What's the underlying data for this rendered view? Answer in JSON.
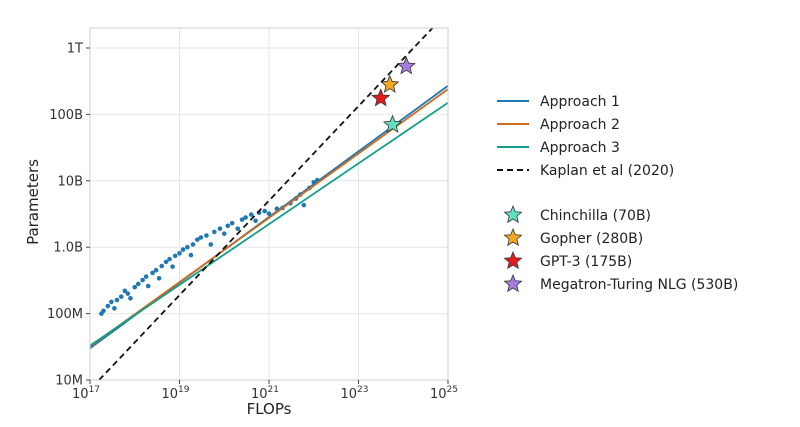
{
  "chart_data": {
    "type": "line",
    "xlabel": "FLOPs",
    "ylabel": "Parameters",
    "xscale": "log",
    "yscale": "log",
    "xlim": [
      1e+17,
      1e+25
    ],
    "ylim": [
      10000000.0,
      2000000000000.0
    ],
    "grid": true,
    "legend_placement": "right",
    "x_ticks": [
      {
        "value": 1e+17,
        "base": "10",
        "exp": "17"
      },
      {
        "value": 1e+19,
        "base": "10",
        "exp": "19"
      },
      {
        "value": 1e+21,
        "base": "10",
        "exp": "21"
      },
      {
        "value": 1e+23,
        "base": "10",
        "exp": "23"
      },
      {
        "value": 1e+25,
        "base": "10",
        "exp": "25"
      }
    ],
    "y_ticks": [
      {
        "value": 10000000.0,
        "label": "10M"
      },
      {
        "value": 100000000.0,
        "label": "100M"
      },
      {
        "value": 1000000000.0,
        "label": "1.0B"
      },
      {
        "value": 10000000000.0,
        "label": "10B"
      },
      {
        "value": 100000000000.0,
        "label": "100B"
      },
      {
        "value": 1000000000000.0,
        "label": "1T"
      }
    ],
    "series": [
      {
        "name": "Approach 1",
        "style": "solid",
        "color": "#1f77b4",
        "x": [
          1e+17,
          1e+25
        ],
        "y": [
          30000000.0,
          270000000000.0
        ]
      },
      {
        "name": "Approach 2",
        "style": "solid",
        "color": "#d2691e",
        "x": [
          1e+17,
          1e+25
        ],
        "y": [
          32000000.0,
          240000000000.0
        ]
      },
      {
        "name": "Approach 3",
        "style": "solid",
        "color": "#109e8a",
        "x": [
          1e+17,
          1e+25
        ],
        "y": [
          33000000.0,
          150000000000.0
        ]
      },
      {
        "name": "Kaplan et al (2020)",
        "style": "dashed",
        "color": "#111111",
        "x": [
          1.6e+17,
          4.5e+24
        ],
        "y": [
          10000000.0,
          2000000000000.0
        ]
      }
    ],
    "scatter": {
      "color": "#1f77b4",
      "points": [
        [
          1.8e+17,
          100000000.0
        ],
        [
          2e+17,
          110000000.0
        ],
        [
          2.5e+17,
          130000000.0
        ],
        [
          3e+17,
          150000000.0
        ],
        [
          3.5e+17,
          120000000.0
        ],
        [
          4e+17,
          160000000.0
        ],
        [
          5e+17,
          180000000.0
        ],
        [
          6e+17,
          220000000.0
        ],
        [
          7e+17,
          200000000.0
        ],
        [
          8e+17,
          170000000.0
        ],
        [
          1e+18,
          250000000.0
        ],
        [
          1.2e+18,
          280000000.0
        ],
        [
          1.5e+18,
          320000000.0
        ],
        [
          1.8e+18,
          360000000.0
        ],
        [
          2e+18,
          260000000.0
        ],
        [
          2.5e+18,
          410000000.0
        ],
        [
          3e+18,
          450000000.0
        ],
        [
          3.5e+18,
          340000000.0
        ],
        [
          4e+18,
          520000000.0
        ],
        [
          5e+18,
          600000000.0
        ],
        [
          6e+18,
          660000000.0
        ],
        [
          7e+18,
          510000000.0
        ],
        [
          8e+18,
          740000000.0
        ],
        [
          1e+19,
          810000000.0
        ],
        [
          1.2e+19,
          920000000.0
        ],
        [
          1.5e+19,
          1000000000.0
        ],
        [
          1.8e+19,
          760000000.0
        ],
        [
          2e+19,
          1100000000.0
        ],
        [
          2.5e+19,
          1300000000.0
        ],
        [
          3e+19,
          1400000000.0
        ],
        [
          4e+19,
          1500000000.0
        ],
        [
          5e+19,
          1100000000.0
        ],
        [
          6e+19,
          1700000000.0
        ],
        [
          8e+19,
          1900000000.0
        ],
        [
          1e+20,
          1600000000.0
        ],
        [
          1.2e+20,
          2100000000.0
        ],
        [
          1.5e+20,
          2300000000.0
        ],
        [
          2e+20,
          1900000000.0
        ],
        [
          2.5e+20,
          2600000000.0
        ],
        [
          3e+20,
          2800000000.0
        ],
        [
          4e+20,
          3100000000.0
        ],
        [
          5e+20,
          2500000000.0
        ],
        [
          6e+20,
          3300000000.0
        ],
        [
          8e+20,
          3500000000.0
        ],
        [
          1e+21,
          3200000000.0
        ],
        [
          1.5e+21,
          3800000000.0
        ],
        [
          2e+21,
          3900000000.0
        ],
        [
          3e+21,
          4600000000.0
        ],
        [
          4e+21,
          5400000000.0
        ],
        [
          5e+21,
          6200000000.0
        ],
        [
          6e+21,
          4300000000.0
        ],
        [
          8e+21,
          7800000000.0
        ],
        [
          1e+22,
          9500000000.0
        ],
        [
          1.2e+22,
          10200000000.0
        ]
      ]
    },
    "stars": [
      {
        "name": "Chinchilla (70B)",
        "x": 5.76e+23,
        "y": 70000000000.0,
        "color": "#5fe0c0"
      },
      {
        "name": "Gopher (280B)",
        "x": 5e+23,
        "y": 280000000000.0,
        "color": "#f5a623"
      },
      {
        "name": "GPT-3 (175B)",
        "x": 3.14e+23,
        "y": 175000000000.0,
        "color": "#e41a1c"
      },
      {
        "name": "Megatron-Turing NLG (530B)",
        "x": 1.17e+24,
        "y": 530000000000.0,
        "color": "#a77be0"
      }
    ]
  }
}
